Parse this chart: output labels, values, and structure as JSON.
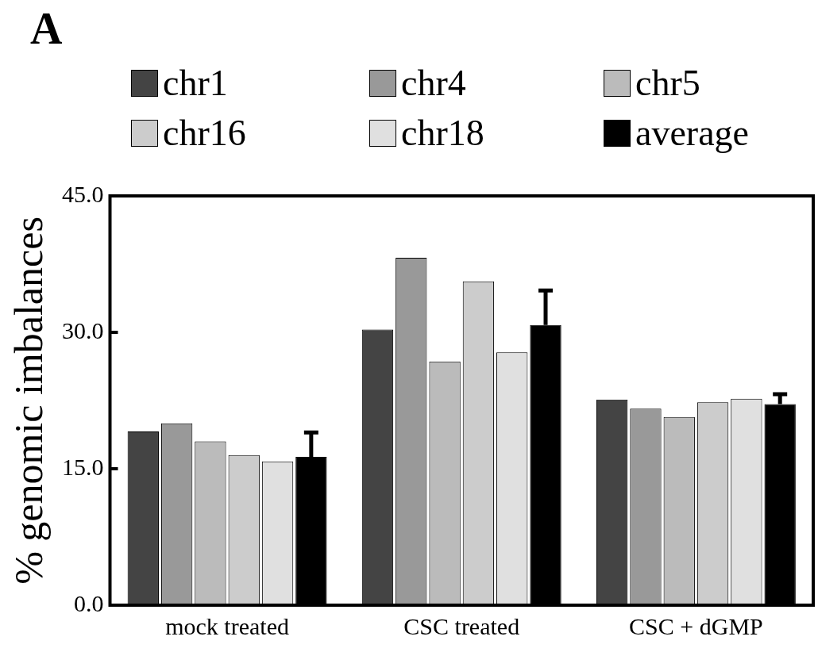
{
  "chart_data": {
    "type": "bar",
    "annotations": [
      "A"
    ],
    "ylabel": "% genomic imbalances",
    "categories": [
      "mock treated",
      "CSC treated",
      "CSC + dGMP"
    ],
    "series": [
      {
        "name": "chr1",
        "color": "#444444",
        "values": [
          19.1,
          30.3,
          22.6
        ]
      },
      {
        "name": "chr4",
        "color": "#999999",
        "values": [
          20.0,
          38.2,
          21.6
        ]
      },
      {
        "name": "chr5",
        "color": "#bbbbbb",
        "values": [
          18.0,
          26.8,
          20.7
        ]
      },
      {
        "name": "chr16",
        "color": "#cccccc",
        "values": [
          16.5,
          35.6,
          22.3
        ]
      },
      {
        "name": "chr18",
        "color": "#e0e0e0",
        "values": [
          15.8,
          27.8,
          22.7
        ]
      },
      {
        "name": "average",
        "color": "#000000",
        "values": [
          16.3,
          30.8,
          22.1
        ],
        "errors": [
          [
            16.3,
            19.0
          ],
          [
            30.8,
            34.6
          ],
          [
            22.1,
            23.2
          ]
        ]
      }
    ],
    "ylim": [
      0,
      45
    ],
    "yticks": [
      {
        "value": 0,
        "label": "0.0"
      },
      {
        "value": 15,
        "label": "15.0"
      },
      {
        "value": 30,
        "label": "30.0"
      },
      {
        "value": 45,
        "label": "45.0"
      }
    ],
    "grid": false,
    "legend": "top"
  }
}
